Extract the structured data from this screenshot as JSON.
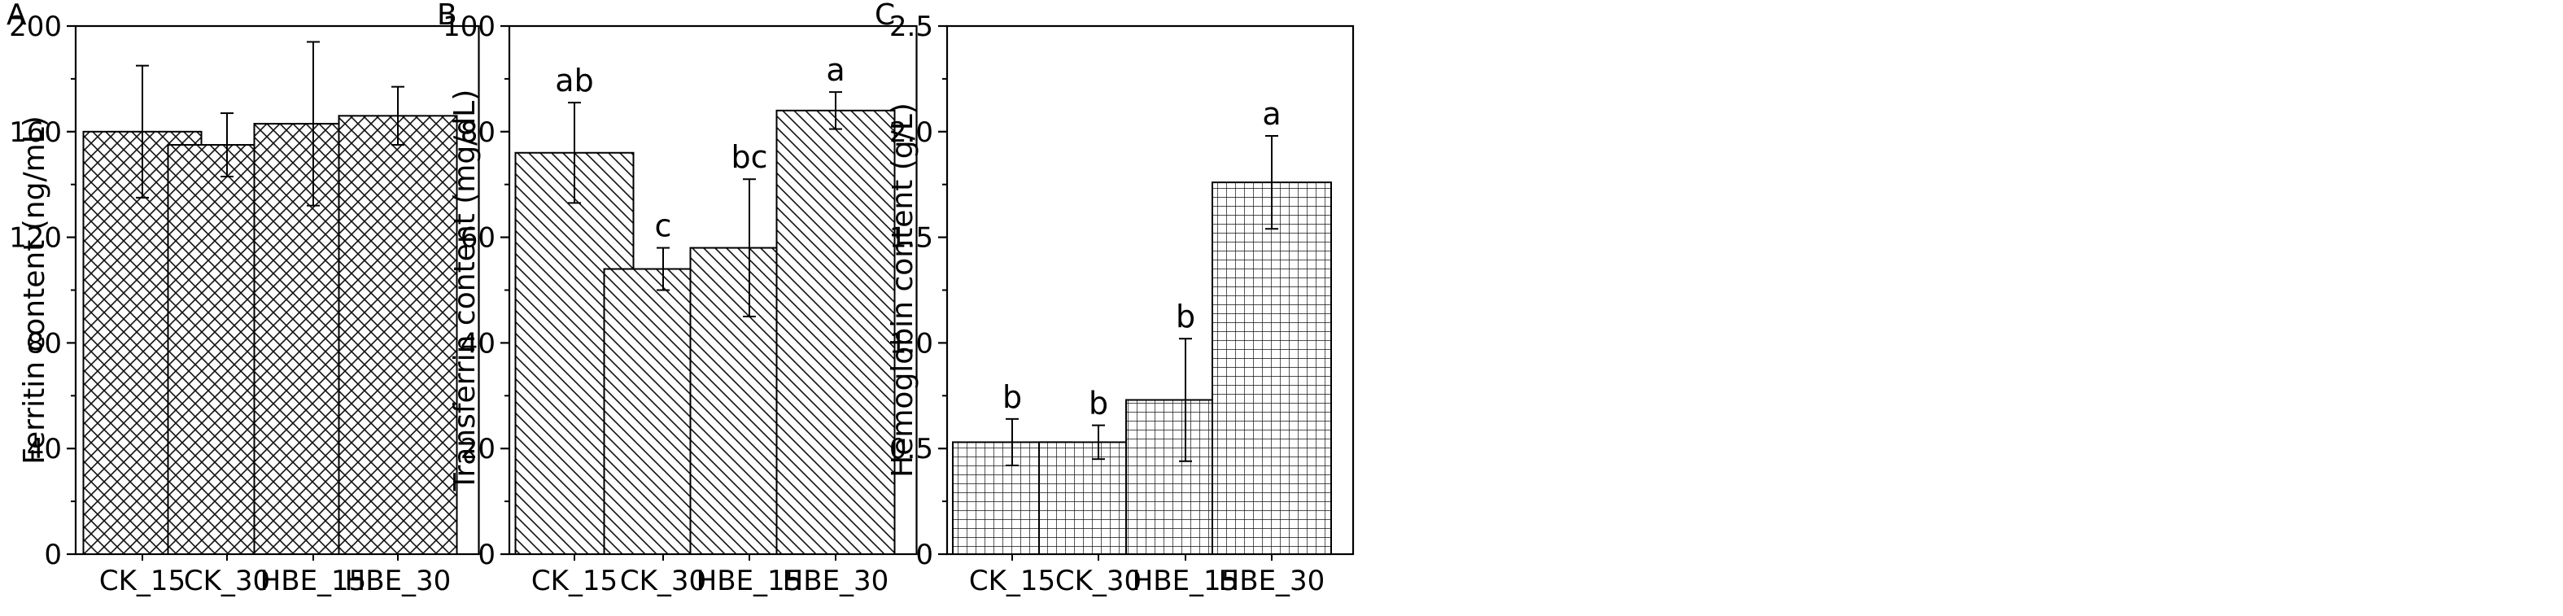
{
  "chart_data": [
    {
      "type": "bar",
      "panel_label": "A",
      "ylabel": "Ferritin content (ng/mL)",
      "categories": [
        "CK_15",
        "CK_30",
        "HBE_15",
        "HBE_30"
      ],
      "values": [
        160,
        155,
        163,
        166
      ],
      "error": [
        25,
        12,
        31,
        11
      ],
      "significance": [],
      "ylim": [
        0,
        200
      ],
      "yticks": [
        "0",
        "40",
        "80",
        "120",
        "160",
        "200"
      ],
      "pattern": "crosshatch",
      "grid": false
    },
    {
      "type": "bar",
      "panel_label": "B",
      "ylabel": "Transferrin content (mg/dL)",
      "categories": [
        "CK_15",
        "CK_30",
        "HBE_15",
        "HBE_30"
      ],
      "values": [
        76,
        54,
        58,
        84
      ],
      "error": [
        9.5,
        4,
        13,
        3.5
      ],
      "significance": [
        "ab",
        "c",
        "bc",
        "a"
      ],
      "ylim": [
        0,
        100
      ],
      "yticks": [
        "0",
        "20",
        "40",
        "60",
        "80",
        "100"
      ],
      "pattern": "diagonal",
      "grid": false
    },
    {
      "type": "bar",
      "panel_label": "C",
      "ylabel": "Hemoglobin content (g/L)",
      "categories": [
        "CK_15",
        "CK_30",
        "HBE_15",
        "HBE_30"
      ],
      "values": [
        0.53,
        0.53,
        0.73,
        1.76
      ],
      "error": [
        0.11,
        0.08,
        0.29,
        0.22
      ],
      "significance": [
        "b",
        "b",
        "b",
        "a"
      ],
      "ylim": [
        0,
        2.5
      ],
      "yticks": [
        "0",
        "0.5",
        "1.0",
        "1.5",
        "2.0",
        "2.5"
      ],
      "pattern": "grid",
      "grid": false
    }
  ]
}
